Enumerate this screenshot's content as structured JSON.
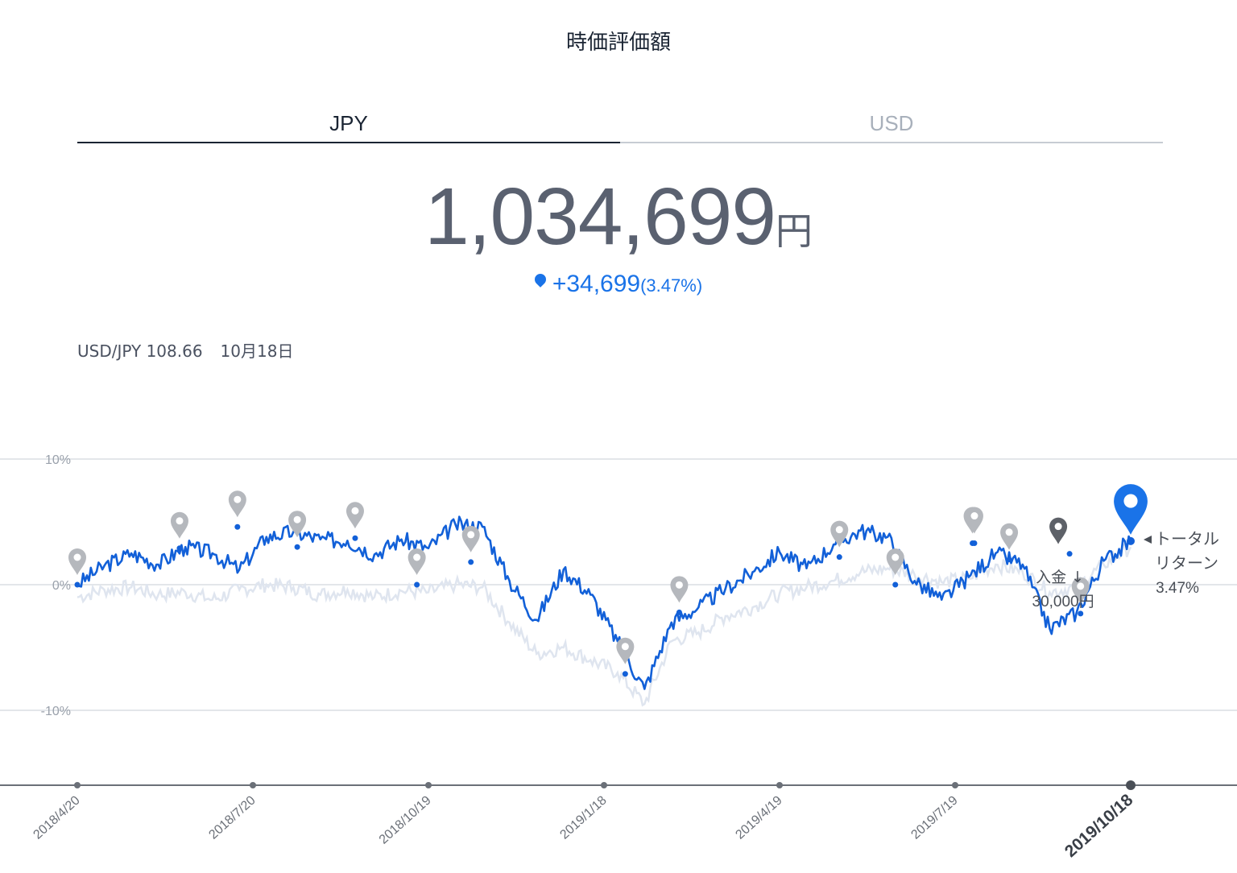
{
  "title": "時価評価額",
  "tabs": [
    {
      "label": "JPY",
      "active": true
    },
    {
      "label": "USD",
      "active": false
    }
  ],
  "amount": {
    "value": "1,034,699",
    "unit": "円"
  },
  "change": {
    "value": "+34,699",
    "percent": "(3.47%)"
  },
  "fx": {
    "label": "USD/JPY 108.66",
    "date": "10月18日"
  },
  "colors": {
    "primary": "#1260d8",
    "benchmark": "#dfe5ef",
    "marker": "#b5b8bd",
    "deposit_marker": "#5d6168"
  },
  "chart_data": {
    "type": "line",
    "ylim": [
      -16,
      10
    ],
    "yticks": [
      {
        "value": 10,
        "label": "10%"
      },
      {
        "value": 0,
        "label": "0%"
      },
      {
        "value": -10,
        "label": "-10%"
      }
    ],
    "xticks": [
      "2018/4/20",
      "2018/7/20",
      "2018/10/19",
      "2019/1/18",
      "2019/4/19",
      "2019/7/19",
      "2019/10/18"
    ],
    "xlim": [
      0,
      546
    ],
    "series": [
      {
        "role": "portfolio",
        "x": [
          0,
          14,
          28,
          42,
          56,
          70,
          84,
          98,
          112,
          126,
          140,
          154,
          168,
          182,
          196,
          210,
          224,
          238,
          252,
          266,
          280,
          294,
          308,
          322,
          336,
          350,
          364,
          378,
          392,
          406,
          420,
          434,
          448,
          462,
          476,
          490,
          504,
          518,
          532,
          546
        ],
        "y": [
          0,
          1.5,
          2.5,
          1.6,
          3,
          2.5,
          1.2,
          3.8,
          4.2,
          3.6,
          3.5,
          2.4,
          3.6,
          2.9,
          4.8,
          4.6,
          0.3,
          -2.8,
          1.2,
          -0.8,
          -4.5,
          -8.3,
          -3,
          -1.8,
          -0.3,
          1,
          2.6,
          1.3,
          3.2,
          4.3,
          3.8,
          0.3,
          -1.2,
          0.6,
          2.5,
          1.6,
          -3.5,
          -2.2,
          1.9,
          3.47
        ]
      },
      {
        "role": "benchmark",
        "x": [
          0,
          14,
          28,
          42,
          56,
          70,
          84,
          98,
          112,
          126,
          140,
          154,
          168,
          182,
          196,
          210,
          224,
          238,
          252,
          266,
          280,
          294,
          308,
          322,
          336,
          350,
          364,
          378,
          392,
          406,
          420,
          434,
          448,
          462,
          476,
          490,
          504,
          518,
          532,
          546
        ],
        "y": [
          -1,
          -0.4,
          -0.2,
          -0.8,
          -0.6,
          -1.2,
          -0.4,
          0,
          -0.2,
          -0.8,
          -0.4,
          -1,
          -0.5,
          -0.6,
          0,
          -0.2,
          -3,
          -5.5,
          -5,
          -6,
          -7,
          -9.5,
          -4.5,
          -3.8,
          -2.5,
          -1.8,
          -0.7,
          -0.2,
          0.3,
          1,
          1.3,
          0.8,
          0.2,
          0.5,
          1.6,
          1,
          -0.6,
          -0.2,
          1.6,
          3
        ]
      }
    ],
    "event_markers_x": [
      0,
      53,
      83,
      114,
      144,
      176,
      204,
      284,
      312,
      312,
      312,
      312,
      312,
      312,
      312,
      312,
      395,
      424,
      464,
      465,
      483,
      520
    ],
    "event_markers_y": [
      0,
      2.9,
      4.6,
      3,
      3.7,
      0,
      1.8,
      -7.1,
      -2.2,
      -2.2,
      -2.2,
      -2.2,
      -2.2,
      -2.2,
      -2.2,
      -2.2,
      2.2,
      0,
      3.3,
      3.3,
      2,
      -2.3
    ],
    "deposit": {
      "label": "入金",
      "amount": "30,000円",
      "x": 526
    },
    "total_return": {
      "label_line1": "トータル",
      "label_line2": "リターン",
      "value": "3.47%"
    }
  }
}
